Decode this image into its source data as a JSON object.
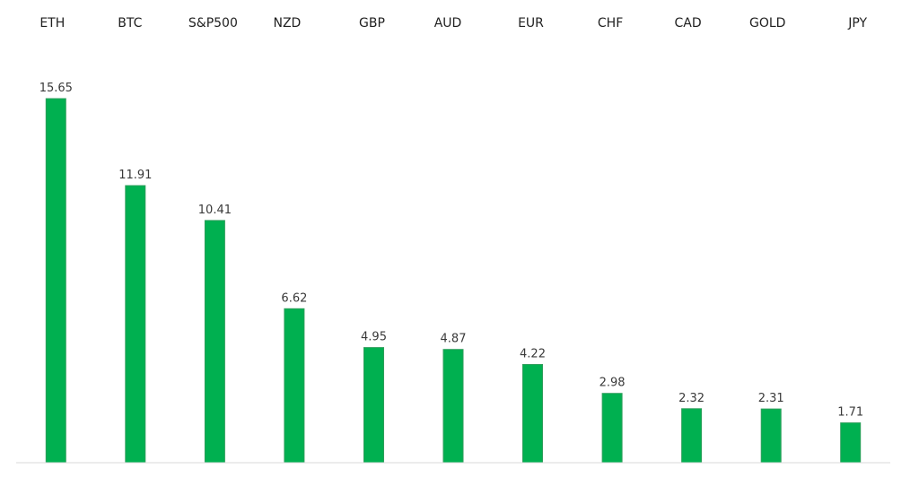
{
  "chart_data": {
    "type": "bar",
    "title": "",
    "xlabel": "",
    "ylabel": "",
    "categories": [
      "ETH",
      "BTC",
      "S&P500",
      "NZD",
      "GBP",
      "AUD",
      "EUR",
      "CHF",
      "CAD",
      "GOLD",
      "JPY"
    ],
    "values": [
      15.65,
      11.91,
      10.41,
      6.62,
      4.95,
      4.87,
      4.22,
      2.98,
      2.32,
      2.31,
      1.71
    ],
    "value_labels": [
      "15.65",
      "11.91",
      "10.41",
      "6.62",
      "4.95",
      "4.87",
      "4.22",
      "2.98",
      "2.32",
      "2.31",
      "1.71"
    ],
    "ylim": [
      0,
      16
    ],
    "grid": false,
    "legend": "none",
    "category_labels_position": "top",
    "bar_color": "#00b050",
    "bar_edge_color": "#2e9e5b",
    "axis_color": "#d9d9d9"
  }
}
